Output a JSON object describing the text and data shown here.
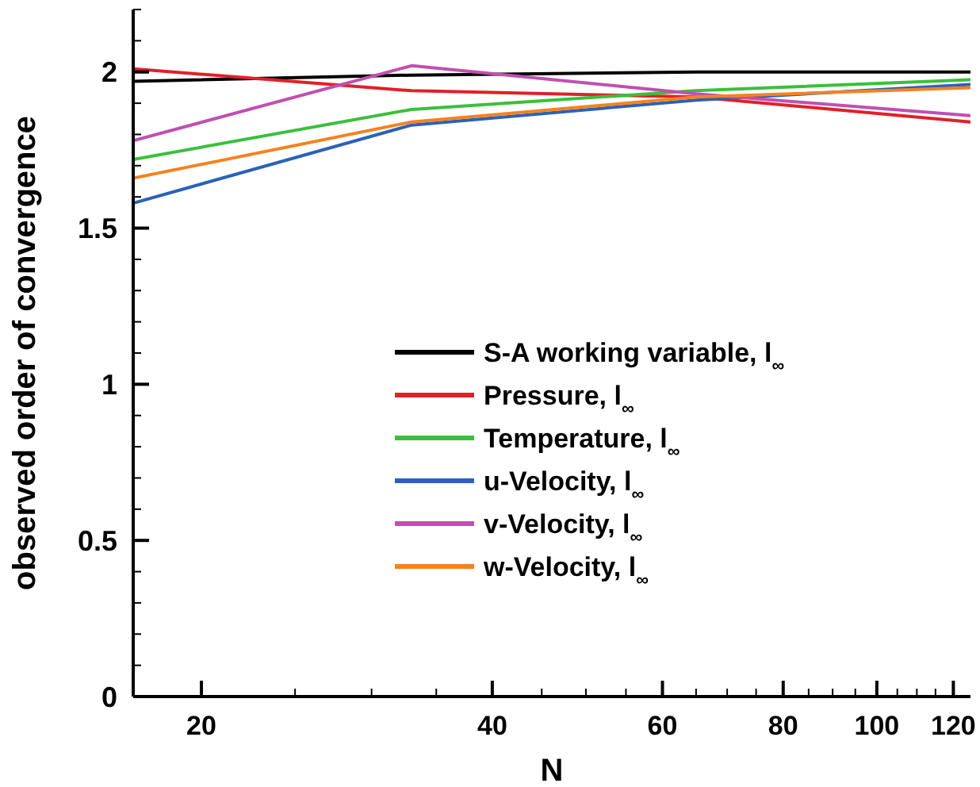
{
  "chart_data": {
    "type": "line",
    "xlabel": "N",
    "ylabel": "observed order of convergence",
    "log": "x",
    "xlim": [
      17,
      125
    ],
    "ylim": [
      0,
      2.2
    ],
    "xticks": [
      20,
      {
        "value": 25,
        "label": null
      },
      {
        "value": 30,
        "label": null
      },
      {
        "value": 35,
        "label": null
      },
      40,
      {
        "value": 45,
        "label": null
      },
      {
        "value": 50,
        "label": null
      },
      {
        "value": 55,
        "label": null
      },
      60,
      {
        "value": 65,
        "label": null
      },
      {
        "value": 70,
        "label": null
      },
      {
        "value": 75,
        "label": null
      },
      80,
      {
        "value": 85,
        "label": null
      },
      {
        "value": 90,
        "label": null
      },
      {
        "value": 95,
        "label": null
      },
      100,
      {
        "value": 105,
        "label": null
      },
      {
        "value": 110,
        "label": null
      },
      {
        "value": 115,
        "label": null
      },
      120
    ],
    "yticks": [
      0,
      {
        "value": 0.1,
        "label": null
      },
      {
        "value": 0.2,
        "label": null
      },
      {
        "value": 0.3,
        "label": null
      },
      {
        "value": 0.4,
        "label": null
      },
      0.5,
      {
        "value": 0.6,
        "label": null
      },
      {
        "value": 0.7,
        "label": null
      },
      {
        "value": 0.8,
        "label": null
      },
      {
        "value": 0.9,
        "label": null
      },
      1,
      {
        "value": 1.1,
        "label": null
      },
      {
        "value": 1.2,
        "label": null
      },
      {
        "value": 1.3,
        "label": null
      },
      {
        "value": 1.4,
        "label": null
      },
      1.5,
      {
        "value": 1.6,
        "label": null
      },
      {
        "value": 1.7,
        "label": null
      },
      {
        "value": 1.8,
        "label": null
      },
      {
        "value": 1.9,
        "label": null
      },
      2,
      {
        "value": 2.1,
        "label": null
      },
      {
        "value": 2.2,
        "label": null
      }
    ],
    "x": [
      17,
      33,
      65,
      125
    ],
    "grid": false,
    "legend": "right",
    "marker": "none",
    "line_style": "solid",
    "series": [
      {
        "name": "S-A working variable, l$_{∞}$",
        "color": "#000000",
        "values": [
          1.97,
          1.99,
          2.0,
          2.0
        ]
      },
      {
        "name": "Pressure, l$_{∞}$",
        "color": "#e0202a",
        "values": [
          2.01,
          1.94,
          1.92,
          1.84
        ]
      },
      {
        "name": "Temperature, l$_{∞}$",
        "color": "#3cbf3c",
        "values": [
          1.72,
          1.88,
          1.94,
          1.975
        ]
      },
      {
        "name": "u-Velocity, l$_{∞}$",
        "color": "#2a62b8",
        "values": [
          1.58,
          1.83,
          1.91,
          1.96
        ]
      },
      {
        "name": "v-Velocity, l$_{∞}$",
        "color": "#c050b0",
        "values": [
          1.78,
          2.02,
          1.93,
          1.86
        ]
      },
      {
        "name": "w-Velocity, l$_{∞}$",
        "color": "#f58220",
        "values": [
          1.66,
          1.84,
          1.92,
          1.95
        ]
      }
    ]
  }
}
